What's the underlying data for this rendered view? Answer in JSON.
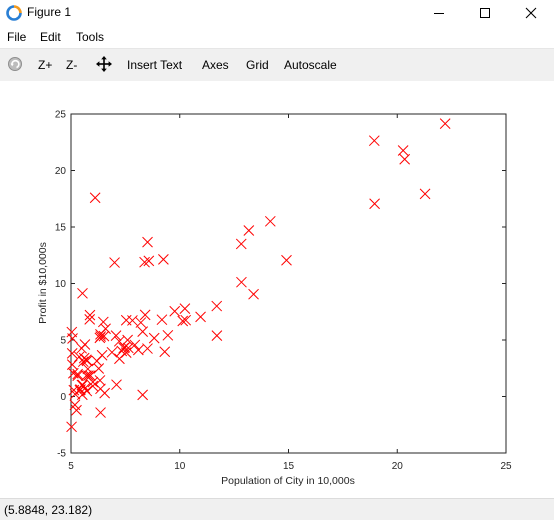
{
  "window": {
    "title": "Figure 1",
    "controls": [
      "minimize-icon",
      "maximize-icon",
      "close-icon"
    ]
  },
  "menu": [
    "File",
    "Edit",
    "Tools"
  ],
  "toolbar": {
    "rotate_icon": "rotate-icon",
    "zoom_in": "Z+",
    "zoom_out": "Z-",
    "pan_icon": "pan-arrows-icon",
    "insert_text": "Insert Text",
    "axes": "Axes",
    "grid": "Grid",
    "autoscale": "Autoscale"
  },
  "status": {
    "coords": "(5.8848, 23.182)"
  },
  "colors": {
    "marker": "#ff0000",
    "toolbar_bg": "#f0f0f0"
  },
  "chart_data": {
    "type": "scatter",
    "marker": "x",
    "color": "#ff0000",
    "title": "",
    "xlabel": "Population of City in 10,000s",
    "ylabel": "Profit in $10,000s",
    "xlim": [
      5,
      25
    ],
    "ylim": [
      -5,
      25
    ],
    "xticks": [
      5,
      10,
      15,
      20,
      25
    ],
    "yticks": [
      -5,
      0,
      5,
      10,
      15,
      20,
      25
    ],
    "x": [
      6.1101,
      5.5277,
      8.5186,
      7.0032,
      5.8598,
      8.3829,
      7.4764,
      8.5781,
      6.4862,
      5.0546,
      5.7107,
      14.164,
      5.734,
      8.4084,
      5.6407,
      5.3794,
      6.3654,
      5.1301,
      6.4296,
      7.0708,
      6.1891,
      20.27,
      5.4901,
      6.3261,
      5.5649,
      18.945,
      12.828,
      10.957,
      13.176,
      22.203,
      5.2524,
      6.5894,
      9.2482,
      5.8918,
      8.2111,
      7.9334,
      8.0959,
      5.6063,
      12.836,
      6.3534,
      5.4069,
      6.8825,
      11.708,
      5.7737,
      7.8247,
      7.0931,
      5.0702,
      5.8014,
      11.7,
      5.5416,
      7.5402,
      5.3077,
      7.4239,
      7.6031,
      6.3328,
      6.3589,
      6.2742,
      5.6397,
      9.3102,
      9.4536,
      8.8254,
      5.1793,
      21.279,
      14.908,
      18.959,
      7.2182,
      8.2951,
      10.236,
      5.4994,
      20.341,
      10.136,
      7.3345,
      6.0062,
      7.2259,
      5.0269,
      6.5479,
      7.5386,
      5.0365,
      10.274,
      5.1077,
      5.7292,
      5.1884,
      6.3557,
      9.7687,
      6.5159,
      8.5172,
      9.1802,
      6.002,
      5.5204,
      5.0594,
      5.7077,
      7.6366,
      5.8707,
      5.3054,
      8.2934,
      13.394,
      5.4369
    ],
    "y": [
      17.592,
      9.1302,
      13.662,
      11.854,
      6.8233,
      11.886,
      4.3483,
      12.0,
      6.5987,
      3.8166,
      3.2522,
      15.505,
      3.1551,
      7.2258,
      0.71618,
      3.5129,
      5.3048,
      0.56077,
      3.6518,
      5.3893,
      3.1386,
      21.767,
      4.263,
      5.1875,
      3.0825,
      22.638,
      13.501,
      7.0467,
      14.692,
      24.147,
      -1.22,
      5.9966,
      12.134,
      1.8495,
      6.5426,
      4.5623,
      4.1164,
      3.3928,
      10.117,
      5.4974,
      0.55657,
      3.9115,
      5.3854,
      2.4406,
      6.7318,
      1.0463,
      5.1337,
      1.844,
      8.0043,
      1.0179,
      6.7504,
      1.8396,
      4.2885,
      4.9981,
      1.4233,
      -1.4211,
      2.4756,
      4.6042,
      3.9624,
      5.4141,
      5.1694,
      -0.74279,
      17.929,
      12.054,
      17.054,
      4.8852,
      5.7442,
      7.7754,
      1.0173,
      20.992,
      6.6799,
      4.0259,
      1.2784,
      3.3411,
      -2.6807,
      0.29678,
      3.8845,
      5.7014,
      6.7526,
      2.0576,
      0.47953,
      0.20421,
      0.67861,
      7.5435,
      5.3436,
      4.2415,
      6.7981,
      0.92695,
      0.152,
      2.8214,
      1.8451,
      4.2959,
      7.2029,
      1.9869,
      0.14454,
      9.0551,
      0.61705
    ]
  }
}
